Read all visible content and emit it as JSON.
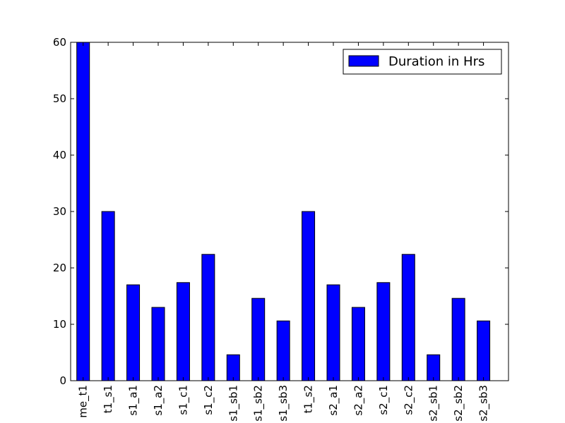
{
  "chart_data": {
    "type": "bar",
    "categories": [
      "me_t1",
      "t1_s1",
      "s1_a1",
      "s1_a2",
      "s1_c1",
      "s1_c2",
      "s1_sb1",
      "s1_sb2",
      "s1_sb3",
      "t1_s2",
      "s2_a1",
      "s2_a2",
      "s2_c1",
      "s2_c2",
      "s2_sb1",
      "s2_sb2",
      "s2_sb3"
    ],
    "series": [
      {
        "name": "Duration in Hrs",
        "values": [
          60,
          30,
          17,
          13,
          17.4,
          22.4,
          4.6,
          14.6,
          10.6,
          30,
          17,
          13,
          17.4,
          22.4,
          4.6,
          14.6,
          10.6
        ]
      }
    ],
    "title": "",
    "xlabel": "",
    "ylabel": "",
    "ylim": [
      0,
      60
    ],
    "yticks": [
      0,
      10,
      20,
      30,
      40,
      50,
      60
    ],
    "legend_position": "top-right",
    "grid": false,
    "bar_color": "#0000ff",
    "edge_color": "#000000"
  }
}
